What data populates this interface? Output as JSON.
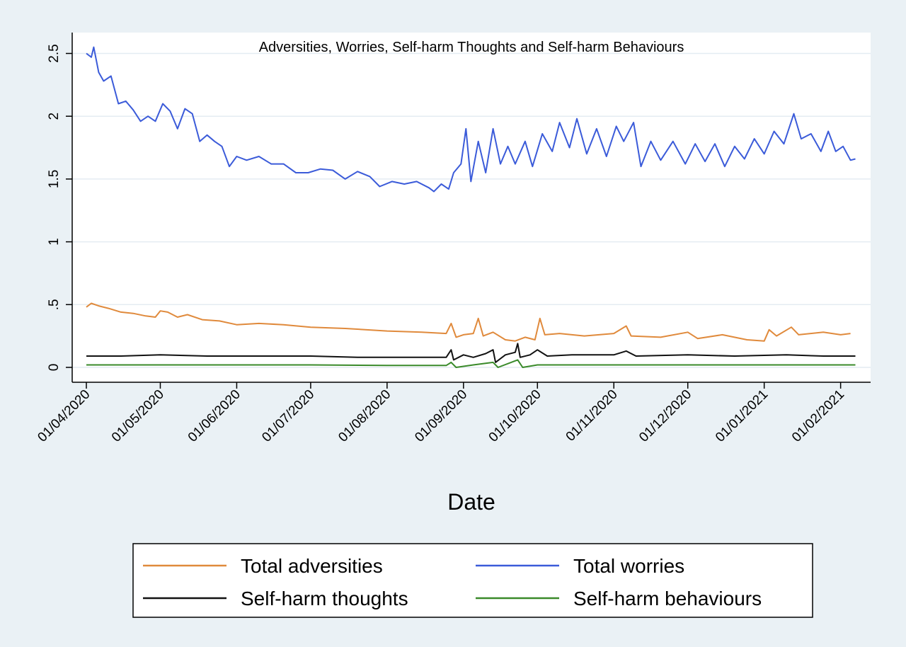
{
  "chart_data": {
    "type": "line",
    "title": "Adversities, Worries, Self-harm Thoughts and Self-harm Behaviours",
    "xlabel": "Date",
    "ylabel": "",
    "x_type": "date",
    "xlim": [
      "2020-04-01",
      "2021-02-08"
    ],
    "ylim": [
      0,
      2.55
    ],
    "yticks": [
      {
        "value": 0,
        "label": "0"
      },
      {
        "value": 0.5,
        "label": ".5"
      },
      {
        "value": 1,
        "label": "1"
      },
      {
        "value": 1.5,
        "label": "1.5"
      },
      {
        "value": 2,
        "label": "2"
      },
      {
        "value": 2.5,
        "label": "2.5"
      }
    ],
    "xticks": [
      {
        "value": "2020-04-01",
        "label": "01/04/2020"
      },
      {
        "value": "2020-05-01",
        "label": "01/05/2020"
      },
      {
        "value": "2020-06-01",
        "label": "01/06/2020"
      },
      {
        "value": "2020-07-01",
        "label": "01/07/2020"
      },
      {
        "value": "2020-08-01",
        "label": "01/08/2020"
      },
      {
        "value": "2020-09-01",
        "label": "01/09/2020"
      },
      {
        "value": "2020-10-01",
        "label": "01/10/2020"
      },
      {
        "value": "2020-11-01",
        "label": "01/11/2020"
      },
      {
        "value": "2020-12-01",
        "label": "01/12/2020"
      },
      {
        "value": "2021-01-01",
        "label": "01/01/2021"
      },
      {
        "value": "2021-02-01",
        "label": "01/02/2021"
      }
    ],
    "grid": true,
    "legend_position": "bottom",
    "series": [
      {
        "name": "Total adversities",
        "color": "#e08a3c",
        "points": [
          [
            "2020-04-01",
            0.48
          ],
          [
            "2020-04-03",
            0.51
          ],
          [
            "2020-04-06",
            0.49
          ],
          [
            "2020-04-10",
            0.47
          ],
          [
            "2020-04-15",
            0.44
          ],
          [
            "2020-04-20",
            0.43
          ],
          [
            "2020-04-25",
            0.41
          ],
          [
            "2020-04-29",
            0.4
          ],
          [
            "2020-05-01",
            0.45
          ],
          [
            "2020-05-04",
            0.44
          ],
          [
            "2020-05-08",
            0.4
          ],
          [
            "2020-05-12",
            0.42
          ],
          [
            "2020-05-18",
            0.38
          ],
          [
            "2020-05-25",
            0.37
          ],
          [
            "2020-06-01",
            0.34
          ],
          [
            "2020-06-10",
            0.35
          ],
          [
            "2020-06-20",
            0.34
          ],
          [
            "2020-07-01",
            0.32
          ],
          [
            "2020-07-15",
            0.31
          ],
          [
            "2020-08-01",
            0.29
          ],
          [
            "2020-08-15",
            0.28
          ],
          [
            "2020-08-25",
            0.27
          ],
          [
            "2020-08-27",
            0.35
          ],
          [
            "2020-08-29",
            0.24
          ],
          [
            "2020-09-01",
            0.26
          ],
          [
            "2020-09-05",
            0.27
          ],
          [
            "2020-09-07",
            0.39
          ],
          [
            "2020-09-09",
            0.25
          ],
          [
            "2020-09-13",
            0.28
          ],
          [
            "2020-09-18",
            0.22
          ],
          [
            "2020-09-22",
            0.21
          ],
          [
            "2020-09-26",
            0.24
          ],
          [
            "2020-09-30",
            0.22
          ],
          [
            "2020-10-02",
            0.39
          ],
          [
            "2020-10-04",
            0.26
          ],
          [
            "2020-10-10",
            0.27
          ],
          [
            "2020-10-20",
            0.25
          ],
          [
            "2020-11-01",
            0.27
          ],
          [
            "2020-11-06",
            0.33
          ],
          [
            "2020-11-08",
            0.25
          ],
          [
            "2020-11-20",
            0.24
          ],
          [
            "2020-12-01",
            0.28
          ],
          [
            "2020-12-05",
            0.23
          ],
          [
            "2020-12-15",
            0.26
          ],
          [
            "2020-12-25",
            0.22
          ],
          [
            "2021-01-01",
            0.21
          ],
          [
            "2021-01-03",
            0.3
          ],
          [
            "2021-01-06",
            0.25
          ],
          [
            "2021-01-12",
            0.32
          ],
          [
            "2021-01-15",
            0.26
          ],
          [
            "2021-01-25",
            0.28
          ],
          [
            "2021-02-01",
            0.26
          ],
          [
            "2021-02-05",
            0.27
          ]
        ]
      },
      {
        "name": "Total worries",
        "color": "#3b5bd9",
        "points": [
          [
            "2020-04-01",
            2.5
          ],
          [
            "2020-04-03",
            2.47
          ],
          [
            "2020-04-04",
            2.55
          ],
          [
            "2020-04-06",
            2.35
          ],
          [
            "2020-04-08",
            2.28
          ],
          [
            "2020-04-11",
            2.32
          ],
          [
            "2020-04-14",
            2.1
          ],
          [
            "2020-04-17",
            2.12
          ],
          [
            "2020-04-20",
            2.05
          ],
          [
            "2020-04-23",
            1.96
          ],
          [
            "2020-04-26",
            2.0
          ],
          [
            "2020-04-29",
            1.96
          ],
          [
            "2020-05-02",
            2.1
          ],
          [
            "2020-05-05",
            2.04
          ],
          [
            "2020-05-08",
            1.9
          ],
          [
            "2020-05-11",
            2.06
          ],
          [
            "2020-05-14",
            2.02
          ],
          [
            "2020-05-17",
            1.8
          ],
          [
            "2020-05-20",
            1.85
          ],
          [
            "2020-05-23",
            1.8
          ],
          [
            "2020-05-26",
            1.76
          ],
          [
            "2020-05-29",
            1.6
          ],
          [
            "2020-06-01",
            1.68
          ],
          [
            "2020-06-05",
            1.65
          ],
          [
            "2020-06-10",
            1.68
          ],
          [
            "2020-06-15",
            1.62
          ],
          [
            "2020-06-20",
            1.62
          ],
          [
            "2020-06-25",
            1.55
          ],
          [
            "2020-06-30",
            1.55
          ],
          [
            "2020-07-05",
            1.58
          ],
          [
            "2020-07-10",
            1.57
          ],
          [
            "2020-07-15",
            1.5
          ],
          [
            "2020-07-20",
            1.56
          ],
          [
            "2020-07-25",
            1.52
          ],
          [
            "2020-07-29",
            1.44
          ],
          [
            "2020-08-03",
            1.48
          ],
          [
            "2020-08-08",
            1.46
          ],
          [
            "2020-08-13",
            1.48
          ],
          [
            "2020-08-18",
            1.43
          ],
          [
            "2020-08-20",
            1.4
          ],
          [
            "2020-08-23",
            1.46
          ],
          [
            "2020-08-26",
            1.42
          ],
          [
            "2020-08-28",
            1.55
          ],
          [
            "2020-08-31",
            1.62
          ],
          [
            "2020-09-02",
            1.9
          ],
          [
            "2020-09-04",
            1.48
          ],
          [
            "2020-09-07",
            1.8
          ],
          [
            "2020-09-10",
            1.55
          ],
          [
            "2020-09-13",
            1.9
          ],
          [
            "2020-09-16",
            1.62
          ],
          [
            "2020-09-19",
            1.76
          ],
          [
            "2020-09-22",
            1.62
          ],
          [
            "2020-09-26",
            1.8
          ],
          [
            "2020-09-29",
            1.6
          ],
          [
            "2020-10-03",
            1.86
          ],
          [
            "2020-10-07",
            1.72
          ],
          [
            "2020-10-10",
            1.95
          ],
          [
            "2020-10-14",
            1.75
          ],
          [
            "2020-10-17",
            1.98
          ],
          [
            "2020-10-21",
            1.7
          ],
          [
            "2020-10-25",
            1.9
          ],
          [
            "2020-10-29",
            1.68
          ],
          [
            "2020-11-02",
            1.92
          ],
          [
            "2020-11-05",
            1.8
          ],
          [
            "2020-11-09",
            1.95
          ],
          [
            "2020-11-12",
            1.6
          ],
          [
            "2020-11-16",
            1.8
          ],
          [
            "2020-11-20",
            1.65
          ],
          [
            "2020-11-25",
            1.8
          ],
          [
            "2020-11-30",
            1.62
          ],
          [
            "2020-12-04",
            1.78
          ],
          [
            "2020-12-08",
            1.64
          ],
          [
            "2020-12-12",
            1.78
          ],
          [
            "2020-12-16",
            1.6
          ],
          [
            "2020-12-20",
            1.76
          ],
          [
            "2020-12-24",
            1.66
          ],
          [
            "2020-12-28",
            1.82
          ],
          [
            "2021-01-01",
            1.7
          ],
          [
            "2021-01-05",
            1.88
          ],
          [
            "2021-01-09",
            1.78
          ],
          [
            "2021-01-13",
            2.02
          ],
          [
            "2021-01-16",
            1.82
          ],
          [
            "2021-01-20",
            1.86
          ],
          [
            "2021-01-24",
            1.72
          ],
          [
            "2021-01-27",
            1.88
          ],
          [
            "2021-01-30",
            1.72
          ],
          [
            "2021-02-02",
            1.76
          ],
          [
            "2021-02-05",
            1.65
          ],
          [
            "2021-02-07",
            1.66
          ]
        ]
      },
      {
        "name": "Self-harm thoughts",
        "color": "#111111",
        "points": [
          [
            "2020-04-01",
            0.09
          ],
          [
            "2020-04-15",
            0.09
          ],
          [
            "2020-05-01",
            0.1
          ],
          [
            "2020-05-20",
            0.09
          ],
          [
            "2020-06-10",
            0.09
          ],
          [
            "2020-07-01",
            0.09
          ],
          [
            "2020-07-20",
            0.08
          ],
          [
            "2020-08-10",
            0.08
          ],
          [
            "2020-08-25",
            0.08
          ],
          [
            "2020-08-27",
            0.14
          ],
          [
            "2020-08-28",
            0.06
          ],
          [
            "2020-09-01",
            0.1
          ],
          [
            "2020-09-05",
            0.08
          ],
          [
            "2020-09-10",
            0.11
          ],
          [
            "2020-09-13",
            0.14
          ],
          [
            "2020-09-14",
            0.04
          ],
          [
            "2020-09-18",
            0.1
          ],
          [
            "2020-09-22",
            0.12
          ],
          [
            "2020-09-23",
            0.19
          ],
          [
            "2020-09-24",
            0.08
          ],
          [
            "2020-09-28",
            0.1
          ],
          [
            "2020-10-01",
            0.14
          ],
          [
            "2020-10-05",
            0.09
          ],
          [
            "2020-10-15",
            0.1
          ],
          [
            "2020-11-01",
            0.1
          ],
          [
            "2020-11-06",
            0.13
          ],
          [
            "2020-11-10",
            0.09
          ],
          [
            "2020-12-01",
            0.1
          ],
          [
            "2020-12-20",
            0.09
          ],
          [
            "2021-01-10",
            0.1
          ],
          [
            "2021-01-25",
            0.09
          ],
          [
            "2021-02-07",
            0.09
          ]
        ]
      },
      {
        "name": "Self-harm behaviours",
        "color": "#3a8a2a",
        "points": [
          [
            "2020-04-01",
            0.02
          ],
          [
            "2020-05-01",
            0.02
          ],
          [
            "2020-06-01",
            0.02
          ],
          [
            "2020-07-01",
            0.02
          ],
          [
            "2020-08-01",
            0.015
          ],
          [
            "2020-08-25",
            0.015
          ],
          [
            "2020-08-27",
            0.04
          ],
          [
            "2020-08-29",
            0.0
          ],
          [
            "2020-09-05",
            0.02
          ],
          [
            "2020-09-13",
            0.04
          ],
          [
            "2020-09-15",
            0.0
          ],
          [
            "2020-09-23",
            0.06
          ],
          [
            "2020-09-25",
            0.0
          ],
          [
            "2020-10-01",
            0.02
          ],
          [
            "2020-11-01",
            0.02
          ],
          [
            "2020-12-01",
            0.02
          ],
          [
            "2021-01-01",
            0.02
          ],
          [
            "2021-02-07",
            0.02
          ]
        ]
      }
    ]
  }
}
